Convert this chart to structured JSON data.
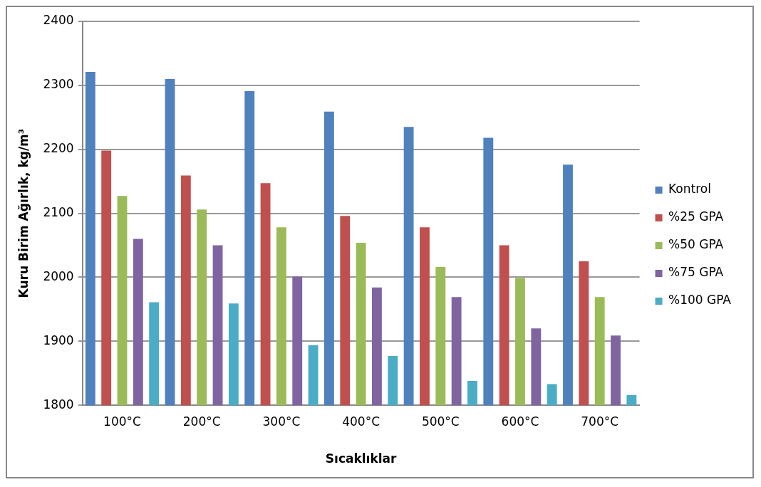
{
  "chart_data": {
    "type": "bar",
    "xlabel": "Sıcaklıklar",
    "ylabel": "Kuru Birim Ağırlık, kg/m³",
    "categories": [
      "100°C",
      "200°C",
      "300°C",
      "400°C",
      "500°C",
      "600°C",
      "700°C"
    ],
    "series": [
      {
        "name": "Kontrol",
        "color": "#4f81bd",
        "values": [
          2321,
          2310,
          2291,
          2259,
          2235,
          2218,
          2176
        ]
      },
      {
        "name": "%25 GPA",
        "color": "#c0504d",
        "values": [
          2198,
          2159,
          2147,
          2096,
          2078,
          2050,
          2025
        ]
      },
      {
        "name": "%50 GPA",
        "color": "#9bbb59",
        "values": [
          2127,
          2106,
          2078,
          2054,
          2016,
          1999,
          1969
        ]
      },
      {
        "name": "%75 GPA",
        "color": "#8064a2",
        "values": [
          2060,
          2050,
          2001,
          1984,
          1969,
          1920,
          1909
        ]
      },
      {
        "name": "%100 GPA",
        "color": "#4bacc6",
        "values": [
          1961,
          1959,
          1894,
          1877,
          1838,
          1833,
          1816
        ]
      }
    ],
    "ylim": [
      1800,
      2400
    ],
    "yticks": [
      1800,
      1900,
      2000,
      2100,
      2200,
      2300,
      2400
    ],
    "grid": "y",
    "legend": "right"
  }
}
